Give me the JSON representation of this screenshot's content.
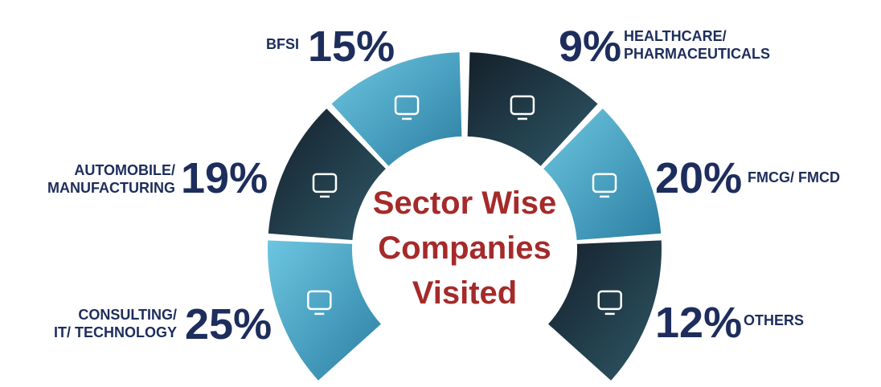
{
  "title_lines": [
    "Sector Wise",
    "Companies",
    "Visited"
  ],
  "sectors": [
    {
      "label_lines": [
        "BFSI"
      ],
      "percent": "15%"
    },
    {
      "label_lines": [
        "AUTOMOBILE/",
        "MANUFACTURING"
      ],
      "percent": "19%"
    },
    {
      "label_lines": [
        "CONSULTING/",
        "IT/ TECHNOLOGY"
      ],
      "percent": "25%"
    },
    {
      "label_lines": [
        "HEALTHCARE/",
        "PHARMACEUTICALS"
      ],
      "percent": "9%"
    },
    {
      "label_lines": [
        "FMCG/ FMCD"
      ],
      "percent": "20%"
    },
    {
      "label_lines": [
        "OTHERS"
      ],
      "percent": "12%"
    }
  ]
}
